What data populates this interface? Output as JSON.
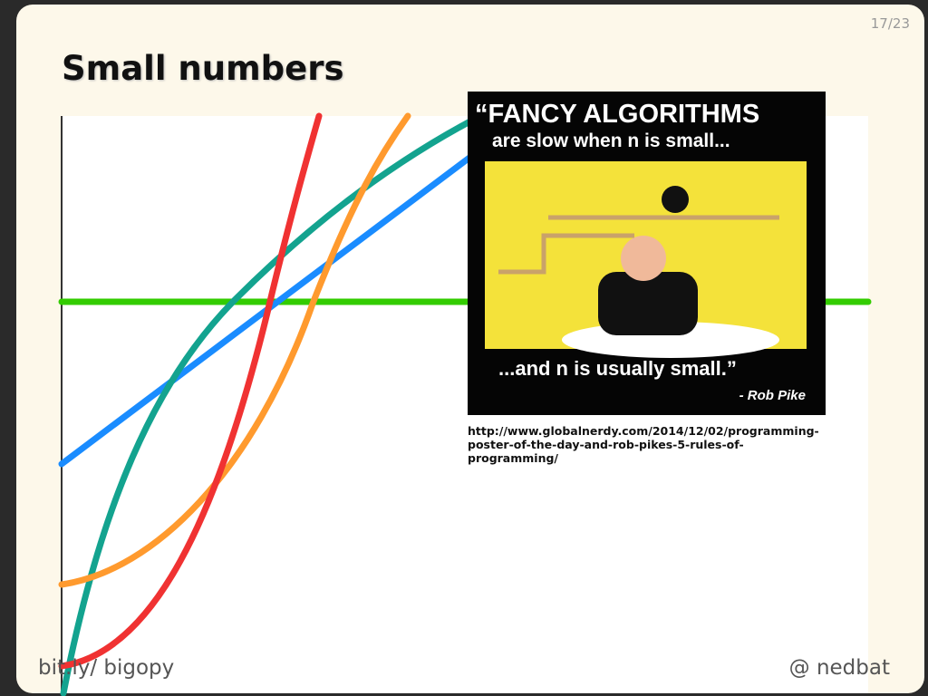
{
  "slide": {
    "page_number": "17/23",
    "title": "Small numbers",
    "poster": {
      "headline": "“FANCY ALGORITHMS",
      "subhead": "are slow when n is small...",
      "tagline": "...and n is usually small.”",
      "attribution": "- Rob Pike"
    },
    "source_url": "http://www.globalnerdy.com/2014/12/02/programming-poster-of-the-day-and-rob-pikes-5-rules-of-programming/",
    "footer_left": "bit.ly/ bigopy",
    "footer_right": "@ nedbat"
  }
}
